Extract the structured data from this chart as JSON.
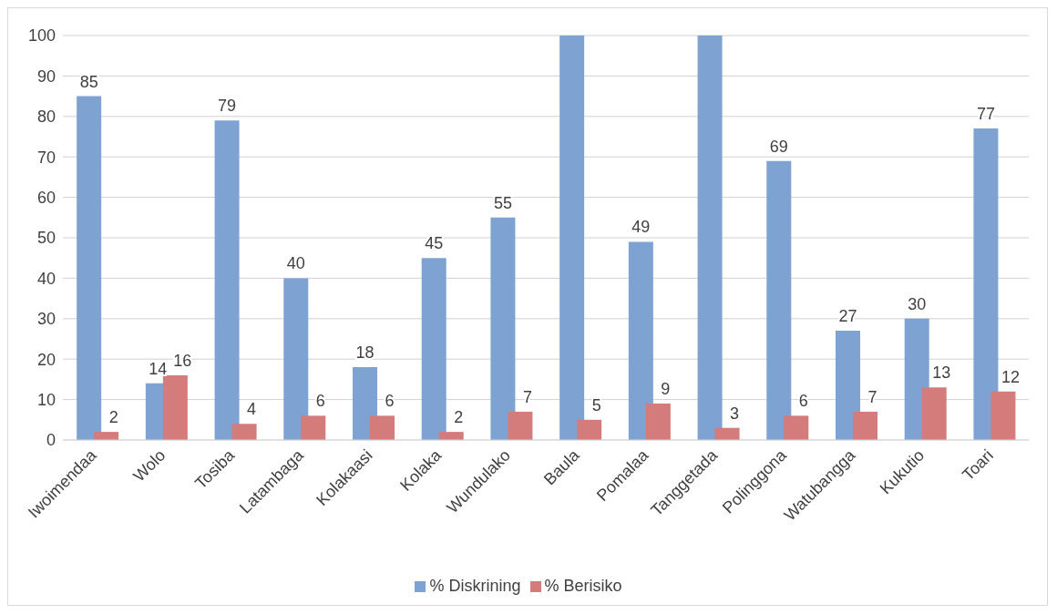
{
  "chart_data": {
    "type": "bar",
    "categories": [
      "Iwoimendaa",
      "Wolo",
      "Tosiba",
      "Latambaga",
      "Kolakaasi",
      "Kolaka",
      "Wundulako",
      "Baula",
      "Pomalaa",
      "Tanggetada",
      "Polinggona",
      "Watubangga",
      "Kukutio",
      "Toari"
    ],
    "series": [
      {
        "name": "% Diskrining",
        "color": "#7ea3d3",
        "values": [
          85,
          14,
          79,
          40,
          18,
          45,
          55,
          100,
          49,
          100,
          69,
          27,
          30,
          77
        ],
        "value_labels": [
          "85",
          "14",
          "79",
          "40",
          "18",
          "45",
          "55",
          null,
          "49",
          null,
          "69",
          "27",
          "30",
          "77"
        ]
      },
      {
        "name": "% Berisiko",
        "color": "#d47b7b",
        "values": [
          2,
          16,
          4,
          6,
          6,
          2,
          7,
          5,
          9,
          3,
          6,
          7,
          13,
          12
        ],
        "value_labels": [
          "2",
          "16",
          "4",
          "6",
          "6",
          "2",
          "7",
          "5",
          "9",
          "3",
          "6",
          "7",
          "13",
          "12"
        ]
      }
    ],
    "ylim": [
      0,
      100
    ],
    "yticks": [
      0,
      10,
      20,
      30,
      40,
      50,
      60,
      70,
      80,
      90,
      100
    ],
    "grid": "y",
    "legend": "bottom"
  }
}
